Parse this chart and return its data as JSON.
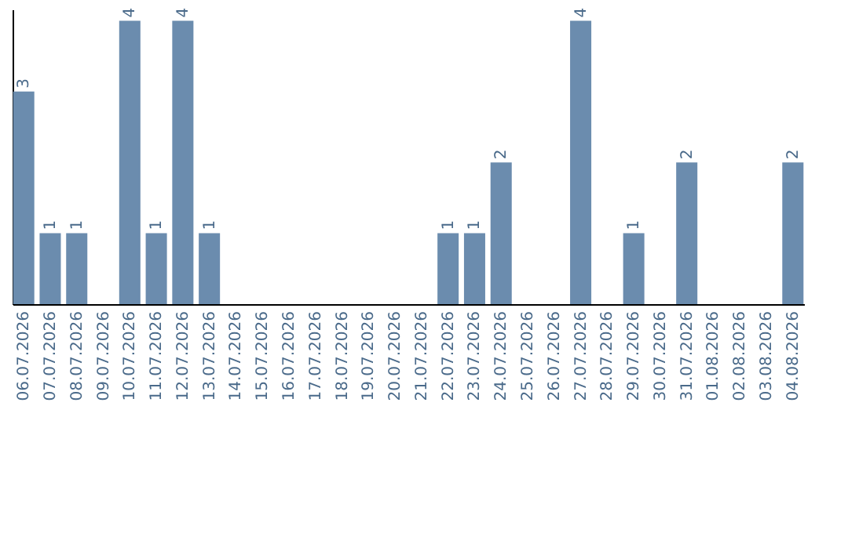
{
  "chart_data": {
    "type": "bar",
    "categories": [
      "06.07.2026",
      "07.07.2026",
      "08.07.2026",
      "09.07.2026",
      "10.07.2026",
      "11.07.2026",
      "12.07.2026",
      "13.07.2026",
      "14.07.2026",
      "15.07.2026",
      "16.07.2026",
      "17.07.2026",
      "18.07.2026",
      "19.07.2026",
      "20.07.2026",
      "21.07.2026",
      "22.07.2026",
      "23.07.2026",
      "24.07.2026",
      "25.07.2026",
      "26.07.2026",
      "27.07.2026",
      "28.07.2026",
      "29.07.2026",
      "30.07.2026",
      "31.07.2026",
      "01.08.2026",
      "02.08.2026",
      "03.08.2026",
      "04.08.2026"
    ],
    "values": [
      3,
      1,
      1,
      0,
      4,
      1,
      4,
      1,
      0,
      0,
      0,
      0,
      0,
      0,
      0,
      0,
      1,
      1,
      2,
      0,
      0,
      4,
      0,
      1,
      0,
      2,
      0,
      0,
      0,
      2
    ],
    "value_labels": [
      "3",
      "1",
      "1",
      null,
      "4",
      "1",
      "4",
      "1",
      null,
      null,
      null,
      null,
      null,
      null,
      null,
      null,
      "1",
      "1",
      "2",
      null,
      null,
      "4",
      null,
      "1",
      null,
      "2",
      null,
      null,
      null,
      "2"
    ],
    "color": "#6b8cae",
    "grid": false
  }
}
